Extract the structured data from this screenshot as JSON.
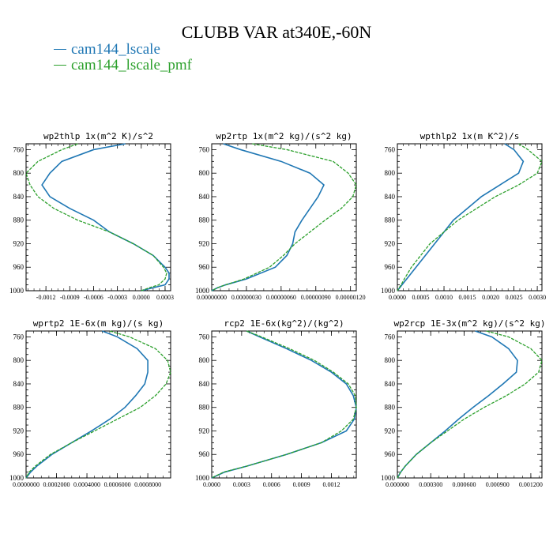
{
  "title": "CLUBB VAR at340E,-60N",
  "legend": [
    {
      "label": "cam144_lscale",
      "color": "#1f77b4"
    },
    {
      "label": "cam144_lscale_pmf",
      "color": "#2ca02c"
    }
  ],
  "chart_data": [
    {
      "type": "line",
      "title": "wp2thlp  1x(m^2 K)/s^2",
      "y_ticks": [
        "760",
        "800",
        "840",
        "880",
        "920",
        "960",
        "1000"
      ],
      "ylim": [
        1000,
        750
      ],
      "x_ticks": [
        "-0.0012",
        "-0.0009",
        "-0.0006",
        "-0.0003",
        "0.0000",
        "0.0003"
      ],
      "xlim": [
        -0.00145,
        0.00037
      ],
      "y": [
        750,
        760,
        780,
        800,
        820,
        840,
        860,
        880,
        900,
        920,
        940,
        960,
        970,
        980,
        990,
        995,
        1000
      ],
      "series": [
        {
          "name": "cam144_lscale",
          "values": [
            -0.0002,
            -0.0006,
            -0.001,
            -0.00115,
            -0.00125,
            -0.00115,
            -0.0009,
            -0.0006,
            -0.0004,
            -0.0001,
            0.00015,
            0.0003,
            0.00035,
            0.00035,
            0.0003,
            0.00015,
            0.0
          ]
        },
        {
          "name": "cam144_lscale_pmf",
          "values": [
            -0.0008,
            -0.001,
            -0.0013,
            -0.00145,
            -0.0014,
            -0.0013,
            -0.0011,
            -0.0008,
            -0.0004,
            -0.0001,
            0.00015,
            0.00028,
            0.00032,
            0.0003,
            0.00022,
            0.0001,
            0.0
          ]
        }
      ]
    },
    {
      "type": "line",
      "title": "wp2rtp  1x(m^2 kg)/(s^2 kg)",
      "y_ticks": [
        "760",
        "800",
        "840",
        "880",
        "920",
        "960",
        "1000"
      ],
      "ylim": [
        1000,
        750
      ],
      "x_ticks": [
        "0.00000000",
        "0.00000030",
        "0.00000060",
        "0.00000090",
        "0.00000120"
      ],
      "xlim": [
        0,
        1.25e-06
      ],
      "y": [
        750,
        760,
        780,
        800,
        820,
        840,
        860,
        880,
        900,
        920,
        940,
        960,
        980,
        990,
        995,
        1000
      ],
      "series": [
        {
          "name": "cam144_lscale",
          "values": [
            1e-07,
            2.5e-07,
            6e-07,
            8.5e-07,
            9.7e-07,
            9.2e-07,
            8.5e-07,
            7.8e-07,
            7.2e-07,
            7e-07,
            6.5e-07,
            5.5e-07,
            3e-07,
            1.2e-07,
            5e-08,
            0.0
          ]
        },
        {
          "name": "cam144_lscale_pmf",
          "values": [
            3.5e-07,
            6.5e-07,
            1.05e-06,
            1.18e-06,
            1.25e-06,
            1.22e-06,
            1.12e-06,
            9.8e-07,
            8.5e-07,
            7.2e-07,
            6.2e-07,
            5e-07,
            2.8e-07,
            1.2e-07,
            5e-08,
            0.0
          ]
        }
      ]
    },
    {
      "type": "line",
      "title": "wpthlp2  1x(m K^2)/s",
      "y_ticks": [
        "760",
        "800",
        "840",
        "880",
        "920",
        "960",
        "1000"
      ],
      "ylim": [
        1000,
        750
      ],
      "x_ticks": [
        "0.0000",
        "0.0005",
        "0.0010",
        "0.0015",
        "0.0020",
        "0.0025",
        "0.0030"
      ],
      "xlim": [
        0,
        0.0031
      ],
      "y": [
        750,
        760,
        780,
        800,
        820,
        840,
        860,
        880,
        900,
        920,
        940,
        960,
        980,
        990,
        1000
      ],
      "series": [
        {
          "name": "cam144_lscale",
          "values": [
            0.0023,
            0.0025,
            0.0027,
            0.0026,
            0.0022,
            0.0018,
            0.0015,
            0.0012,
            0.001,
            0.0008,
            0.0006,
            0.0004,
            0.0002,
            0.0001,
            0.0
          ]
        },
        {
          "name": "cam144_lscale_pmf",
          "values": [
            0.0026,
            0.0028,
            0.0031,
            0.003,
            0.0026,
            0.0021,
            0.0017,
            0.0013,
            0.001,
            0.0007,
            0.0005,
            0.0003,
            0.00015,
            8e-05,
            0.0
          ]
        }
      ]
    },
    {
      "type": "line",
      "title": "wprtp2  1E-6x(m kg)/(s kg)",
      "y_ticks": [
        "760",
        "800",
        "840",
        "880",
        "920",
        "960",
        "1000"
      ],
      "ylim": [
        1000,
        750
      ],
      "x_ticks": [
        "0.0000000",
        "0.0002000",
        "0.0004000",
        "0.0006000",
        "0.0008000"
      ],
      "xlim": [
        0,
        0.00095
      ],
      "y": [
        750,
        760,
        780,
        800,
        820,
        840,
        860,
        880,
        900,
        920,
        940,
        960,
        980,
        990,
        1000
      ],
      "series": [
        {
          "name": "cam144_lscale",
          "values": [
            0.0005,
            0.0006,
            0.00073,
            0.0008,
            0.0008,
            0.00078,
            0.00072,
            0.00065,
            0.00055,
            0.00043,
            0.0003,
            0.00017,
            7e-05,
            3e-05,
            0.0
          ]
        },
        {
          "name": "cam144_lscale_pmf",
          "values": [
            0.00055,
            0.00068,
            0.00085,
            0.00093,
            0.00095,
            0.00092,
            0.00085,
            0.00075,
            0.0006,
            0.00045,
            0.0003,
            0.00016,
            6e-05,
            2e-05,
            0.0
          ]
        }
      ]
    },
    {
      "type": "line",
      "title": "rcp2  1E-6x(kg^2)/(kg^2)",
      "y_ticks": [
        "760",
        "800",
        "840",
        "880",
        "920",
        "960",
        "1000"
      ],
      "ylim": [
        1000,
        750
      ],
      "x_ticks": [
        "0.0000",
        "0.0003",
        "0.0006",
        "0.0009",
        "0.0012"
      ],
      "xlim": [
        0,
        0.00145
      ],
      "y": [
        750,
        760,
        780,
        800,
        820,
        840,
        860,
        880,
        900,
        920,
        940,
        960,
        980,
        990,
        1000
      ],
      "series": [
        {
          "name": "cam144_lscale",
          "values": [
            0.00035,
            0.00048,
            0.00075,
            0.001,
            0.0012,
            0.00135,
            0.00142,
            0.00145,
            0.00143,
            0.00135,
            0.0011,
            0.00075,
            0.00035,
            0.00013,
            0.0
          ]
        },
        {
          "name": "cam144_lscale_pmf",
          "values": [
            0.00035,
            0.0005,
            0.00078,
            0.00103,
            0.00122,
            0.00137,
            0.00144,
            0.00145,
            0.00142,
            0.0013,
            0.0011,
            0.00075,
            0.00035,
            0.00012,
            0.0
          ]
        }
      ]
    },
    {
      "type": "line",
      "title": "wp2rcp  1E-3x(m^2 kg)/(s^2 kg)",
      "y_ticks": [
        "760",
        "800",
        "840",
        "880",
        "920",
        "960",
        "1000"
      ],
      "ylim": [
        1000,
        750
      ],
      "x_ticks": [
        "0.000000",
        "0.000300",
        "0.000600",
        "0.000900",
        "0.001200"
      ],
      "xlim": [
        0,
        0.0013
      ],
      "y": [
        750,
        760,
        780,
        800,
        820,
        840,
        860,
        880,
        900,
        920,
        940,
        960,
        980,
        990,
        1000
      ],
      "series": [
        {
          "name": "cam144_lscale",
          "values": [
            0.0007,
            0.00085,
            0.001,
            0.00108,
            0.00107,
            0.00095,
            0.00082,
            0.00068,
            0.00055,
            0.00043,
            0.0003,
            0.00017,
            7e-05,
            3e-05,
            0.0
          ]
        },
        {
          "name": "cam144_lscale_pmf",
          "values": [
            0.0008,
            0.001,
            0.0012,
            0.0013,
            0.00127,
            0.00115,
            0.00098,
            0.00078,
            0.0006,
            0.00045,
            0.0003,
            0.00017,
            7e-05,
            3e-05,
            0.0
          ]
        }
      ]
    }
  ]
}
